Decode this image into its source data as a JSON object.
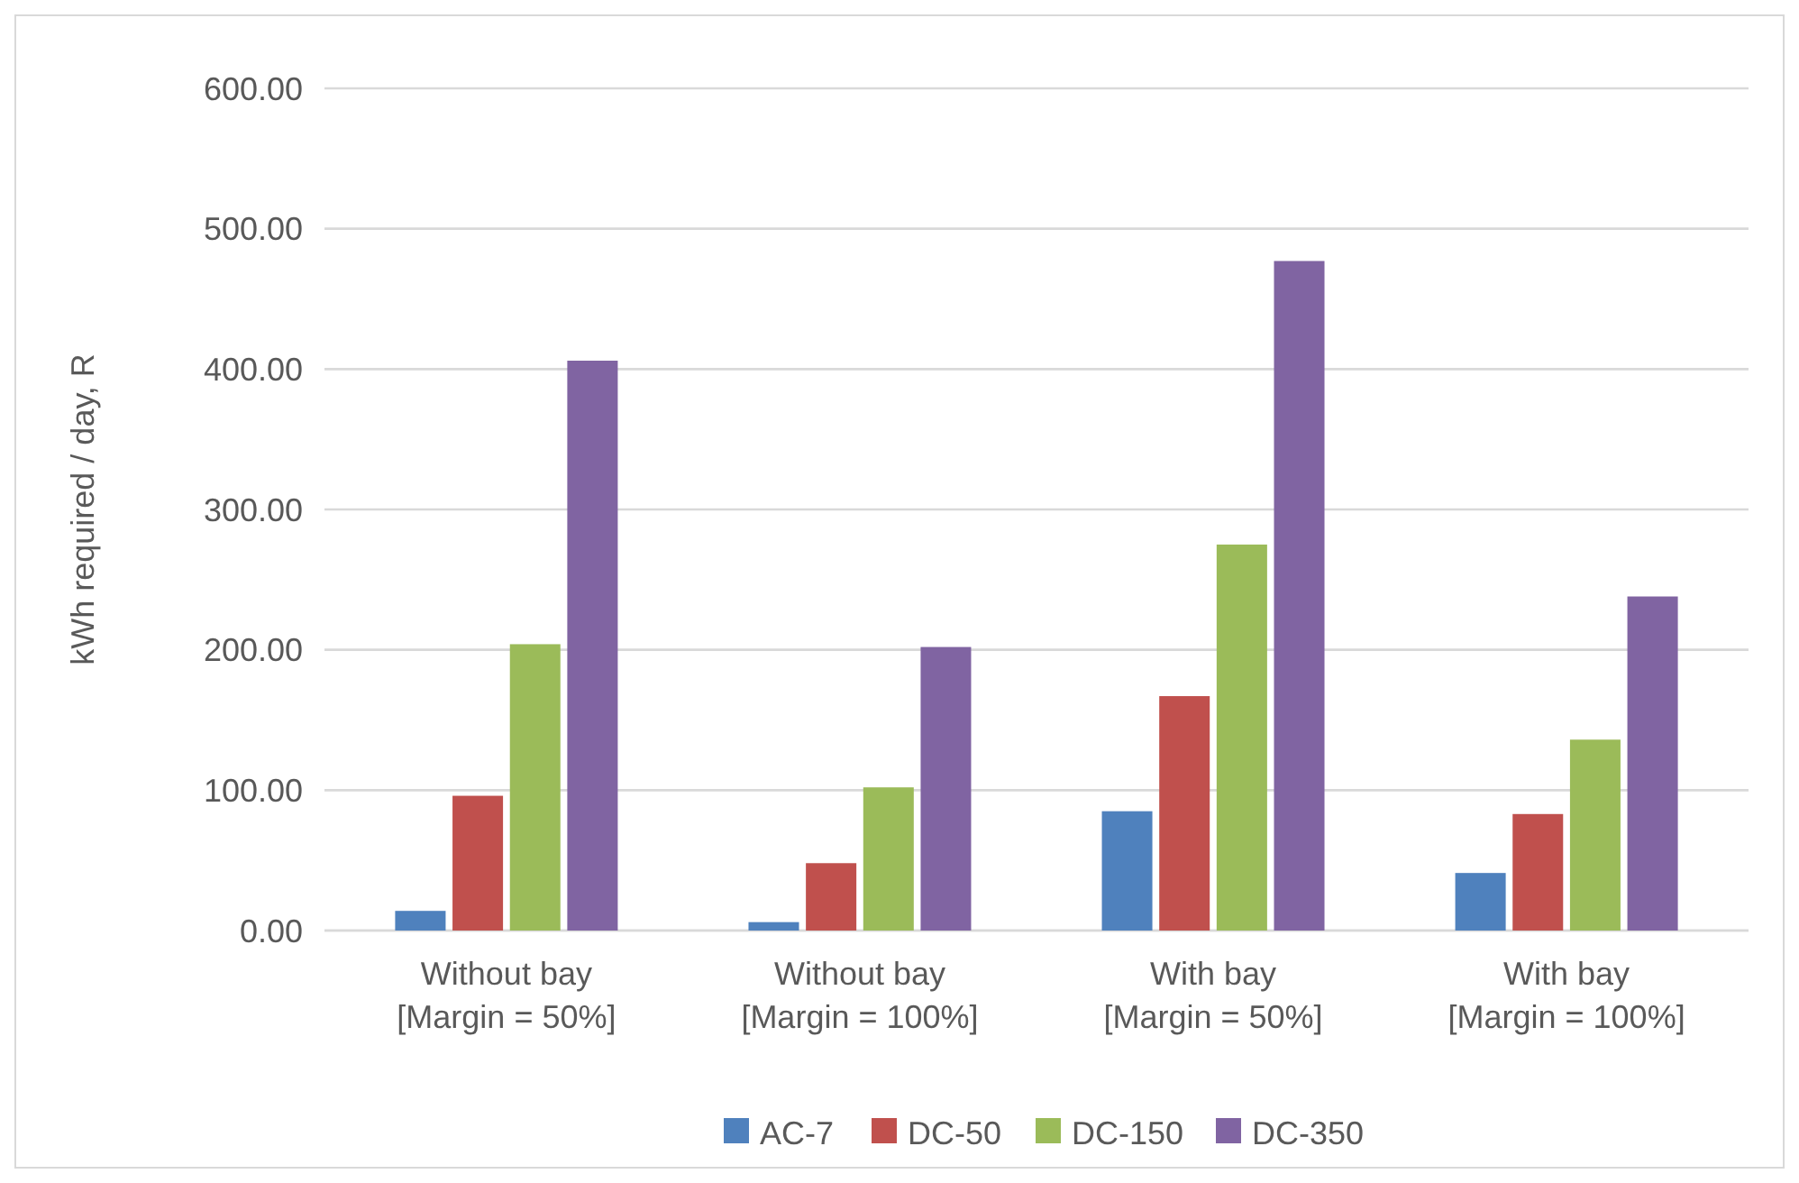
{
  "chart_data": {
    "type": "bar",
    "ylabel": "kWh required / day, R",
    "categories": [
      "Without bay\n[Margin = 50%]",
      "Without bay\n[Margin = 100%]",
      "With bay\n[Margin = 50%]",
      "With bay\n[Margin = 100%]"
    ],
    "series": [
      {
        "name": "AC-7",
        "color": "#4f81bd",
        "values": [
          14,
          6,
          85,
          41
        ]
      },
      {
        "name": "DC-50",
        "color": "#c0504d",
        "values": [
          96,
          48,
          167,
          83
        ]
      },
      {
        "name": "DC-150",
        "color": "#9bbb59",
        "values": [
          204,
          102,
          275,
          136
        ]
      },
      {
        "name": "DC-350",
        "color": "#8064a2",
        "values": [
          406,
          202,
          477,
          238
        ]
      }
    ],
    "ylim": [
      0,
      600
    ],
    "yticks": [
      {
        "value": 0,
        "label": "0.00"
      },
      {
        "value": 100,
        "label": "100.00"
      },
      {
        "value": 200,
        "label": "200.00"
      },
      {
        "value": 300,
        "label": "300.00"
      },
      {
        "value": 400,
        "label": "400.00"
      },
      {
        "value": 500,
        "label": "500.00"
      },
      {
        "value": 600,
        "label": "600.00"
      }
    ],
    "grid": "y",
    "legend": "bottom"
  }
}
